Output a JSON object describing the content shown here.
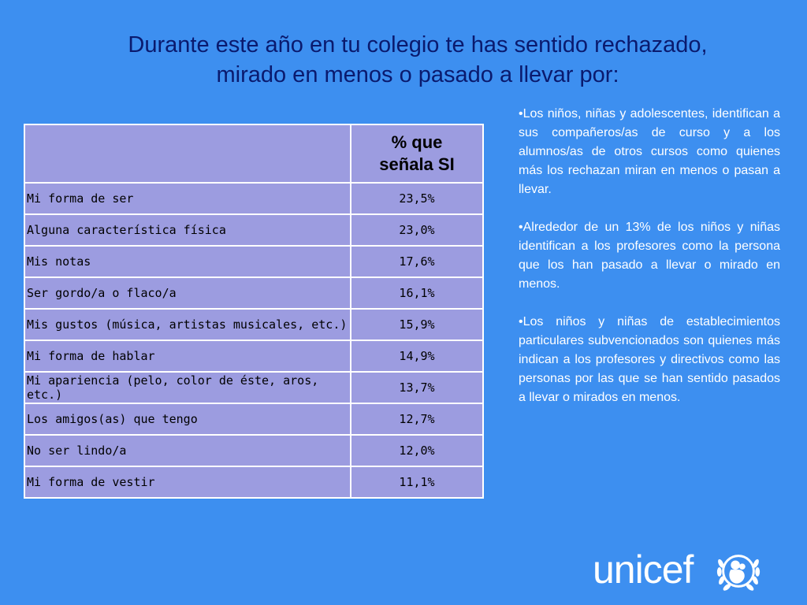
{
  "title": {
    "line1": "Durante este año en tu colegio te has sentido rechazado,",
    "line2": "mirado en menos o pasado a llevar por:"
  },
  "table": {
    "header_line1": "% que",
    "header_line2": "señala SI",
    "rows": [
      {
        "label": "Mi forma de ser",
        "value": "23,5%"
      },
      {
        "label": "Alguna característica física",
        "value": "23,0%"
      },
      {
        "label": "Mis notas",
        "value": "17,6%"
      },
      {
        "label": "Ser gordo/a o flaco/a",
        "value": "16,1%"
      },
      {
        "label": "Mis gustos (música, artistas musicales, etc.)",
        "value": "15,9%"
      },
      {
        "label": "Mi forma de hablar",
        "value": "14,9%"
      },
      {
        "label": "Mi apariencia (pelo, color de éste, aros, etc.)",
        "value": "13,7%"
      },
      {
        "label": "Los amigos(as) que tengo",
        "value": "12,7%"
      },
      {
        "label": "No ser lindo/a",
        "value": "12,0%"
      },
      {
        "label": "Mi forma de vestir",
        "value": "11,1%"
      }
    ]
  },
  "notes": [
    "•Los niños, niñas y adolescentes, identifican a sus compañeros/as de curso y a los alumnos/as de otros cursos como quienes más los rechazan miran en menos o pasan a llevar.",
    "•Alrededor de un 13% de los niños y niñas identifican a los profesores como la persona que los han pasado a llevar o mirado en menos.",
    "•Los niños y niñas de establecimientos particulares subvencionados son  quienes más indican a los profesores y directivos como las personas por las que se han sentido pasados a llevar o mirados en menos."
  ],
  "logo": {
    "text": "unicef",
    "emblem_icon": "unicef-emblem-icon"
  },
  "colors": {
    "background": "#3d8ff0",
    "title": "#0a1a6e",
    "table_fill": "#9c9ce0",
    "notes_text": "#ffffff"
  }
}
